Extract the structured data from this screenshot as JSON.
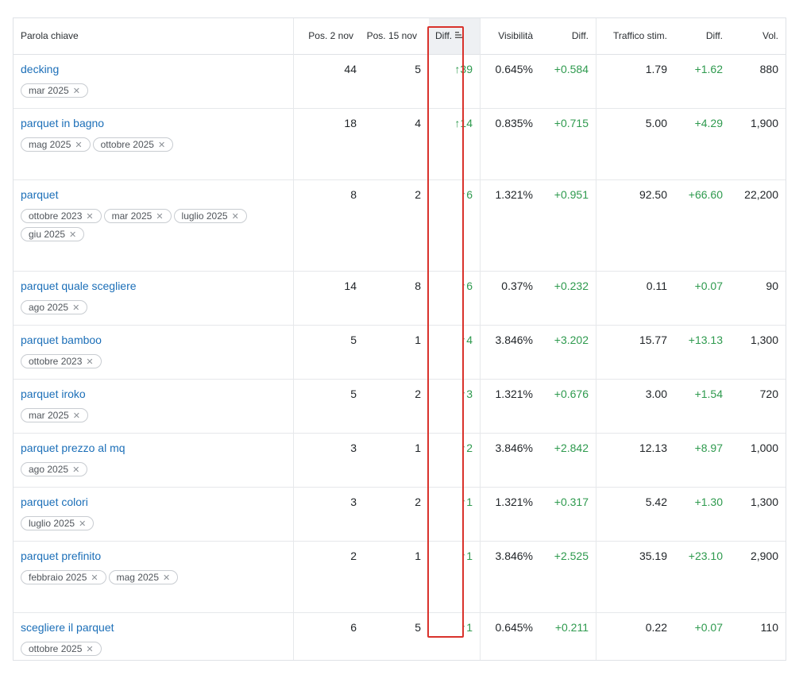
{
  "columns": {
    "keyword": "Parola chiave",
    "pos_a": "Pos. 2 nov",
    "pos_b": "Pos. 15 nov",
    "diff": "Diff.",
    "visibility": "Visibilità",
    "vis_diff": "Diff.",
    "traffic": "Traffico stim.",
    "traffic_diff": "Diff.",
    "volume": "Vol."
  },
  "rows": [
    {
      "keyword": "decking",
      "tags": [
        "mar 2025"
      ],
      "pos_a": "44",
      "pos_b": "5",
      "diff": "↑39",
      "visibility": "0.645%",
      "vis_diff": "+0.584",
      "traffic": "1.79",
      "traffic_diff": "+1.62",
      "volume": "880"
    },
    {
      "keyword": "parquet in bagno",
      "tags": [
        "mag 2025",
        "ottobre 2025"
      ],
      "pos_a": "18",
      "pos_b": "4",
      "diff": "↑14",
      "visibility": "0.835%",
      "vis_diff": "+0.715",
      "traffic": "5.00",
      "traffic_diff": "+4.29",
      "volume": "1,900"
    },
    {
      "keyword": "parquet",
      "tags": [
        "ottobre 2023",
        "mar 2025",
        "luglio 2025",
        "giu 2025"
      ],
      "pos_a": "8",
      "pos_b": "2",
      "diff": "↑6",
      "visibility": "1.321%",
      "vis_diff": "+0.951",
      "traffic": "92.50",
      "traffic_diff": "+66.60",
      "volume": "22,200"
    },
    {
      "keyword": "parquet quale scegliere",
      "tags": [
        "ago 2025"
      ],
      "pos_a": "14",
      "pos_b": "8",
      "diff": "↑6",
      "visibility": "0.37%",
      "vis_diff": "+0.232",
      "traffic": "0.11",
      "traffic_diff": "+0.07",
      "volume": "90"
    },
    {
      "keyword": "parquet bamboo",
      "tags": [
        "ottobre 2023"
      ],
      "pos_a": "5",
      "pos_b": "1",
      "diff": "↑4",
      "visibility": "3.846%",
      "vis_diff": "+3.202",
      "traffic": "15.77",
      "traffic_diff": "+13.13",
      "volume": "1,300"
    },
    {
      "keyword": "parquet iroko",
      "tags": [
        "mar 2025"
      ],
      "pos_a": "5",
      "pos_b": "2",
      "diff": "↑3",
      "visibility": "1.321%",
      "vis_diff": "+0.676",
      "traffic": "3.00",
      "traffic_diff": "+1.54",
      "volume": "720"
    },
    {
      "keyword": "parquet prezzo al mq",
      "tags": [
        "ago 2025"
      ],
      "pos_a": "3",
      "pos_b": "1",
      "diff": "↑2",
      "visibility": "3.846%",
      "vis_diff": "+2.842",
      "traffic": "12.13",
      "traffic_diff": "+8.97",
      "volume": "1,000"
    },
    {
      "keyword": "parquet colori",
      "tags": [
        "luglio 2025"
      ],
      "pos_a": "3",
      "pos_b": "2",
      "diff": "↑1",
      "visibility": "1.321%",
      "vis_diff": "+0.317",
      "traffic": "5.42",
      "traffic_diff": "+1.30",
      "volume": "1,300"
    },
    {
      "keyword": "parquet prefinito",
      "tags": [
        "febbraio 2025",
        "mag 2025"
      ],
      "pos_a": "2",
      "pos_b": "1",
      "diff": "↑1",
      "visibility": "3.846%",
      "vis_diff": "+2.525",
      "traffic": "35.19",
      "traffic_diff": "+23.10",
      "volume": "2,900"
    },
    {
      "keyword": "scegliere il parquet",
      "tags": [
        "ottobre 2025"
      ],
      "pos_a": "6",
      "pos_b": "5",
      "diff": "↑1",
      "visibility": "0.645%",
      "vis_diff": "+0.211",
      "traffic": "0.22",
      "traffic_diff": "+0.07",
      "volume": "110"
    }
  ],
  "icons": {
    "sort": "sort-descending-icon",
    "remove_tag": "close-icon"
  },
  "colors": {
    "link": "#1c6fb8",
    "positive": "#2e9a4e",
    "highlight": "#d9322c",
    "sorted_header_bg": "#eef0f3"
  }
}
